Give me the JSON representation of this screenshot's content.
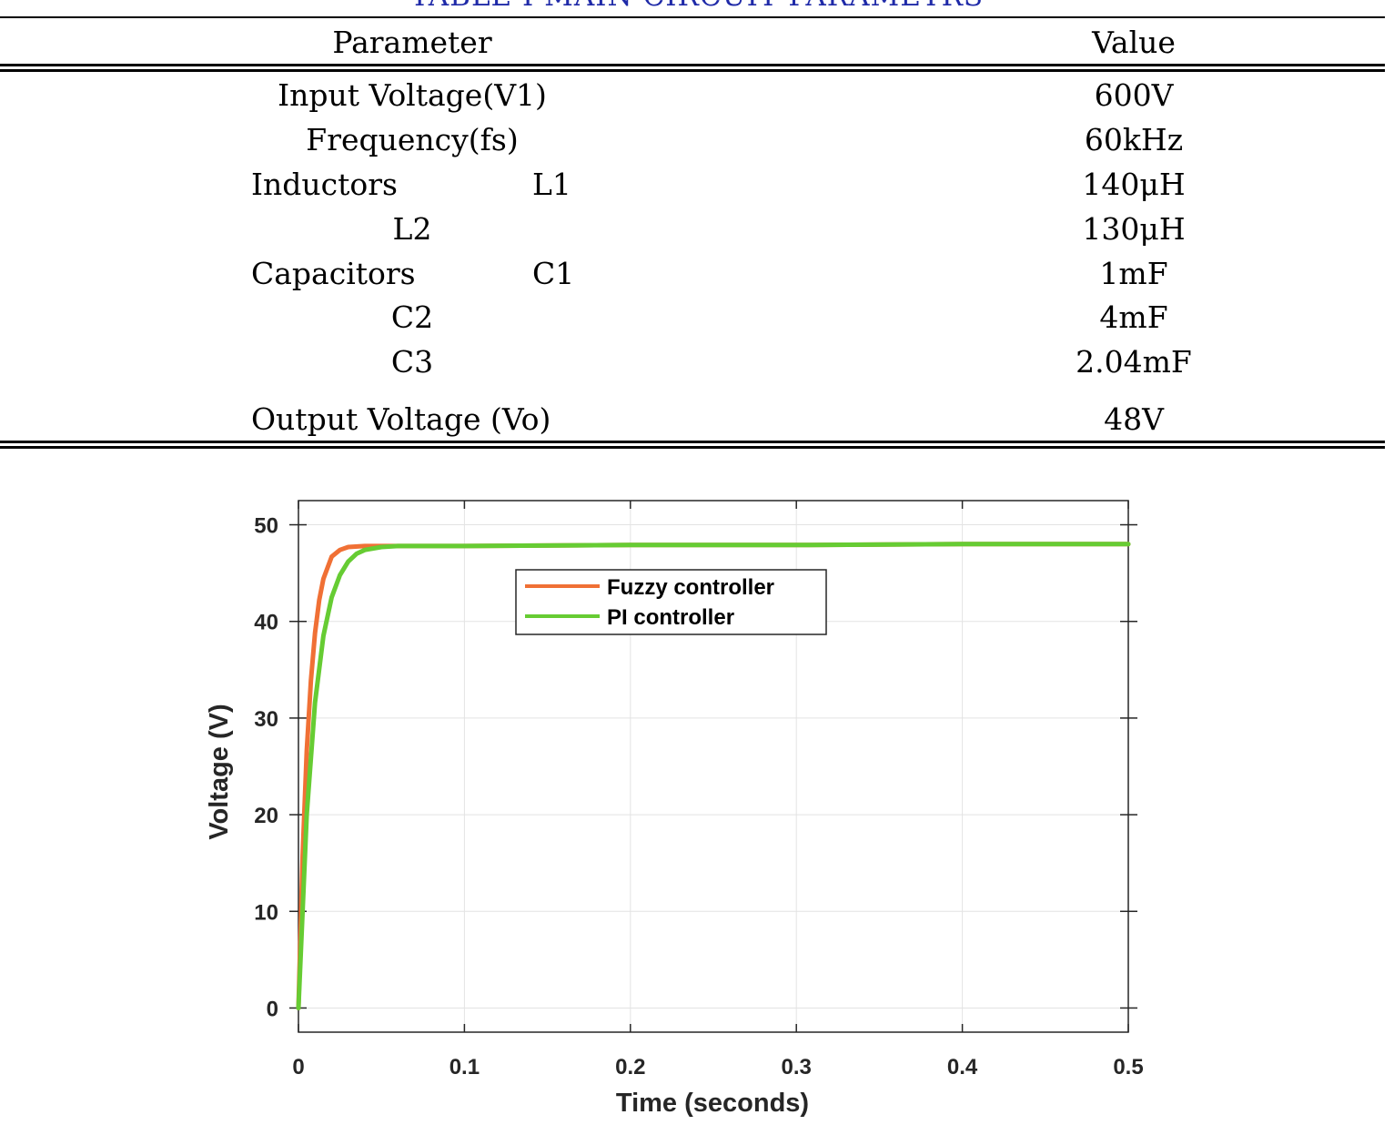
{
  "table": {
    "caption": "TABLE I MAIN CIRCUIT PARAMETRS",
    "header": {
      "param": "Parameter",
      "value": "Value"
    },
    "rows": [
      {
        "param": "Input Voltage(V1)",
        "value": "600V"
      },
      {
        "param": "Frequency(fs)",
        "value": "60kHz"
      },
      {
        "group": "Inductors",
        "sub": "L1",
        "value": "140μH"
      },
      {
        "sub": "L2",
        "value": "130μH"
      },
      {
        "group": "Capacitors",
        "sub": "C1",
        "value": "1mF"
      },
      {
        "sub": "C2",
        "value": "4mF"
      },
      {
        "sub": "C3",
        "value": "2.04mF"
      },
      {
        "param": "Output Voltage (Vo)",
        "value": "48V"
      }
    ]
  },
  "chart_data": {
    "type": "line",
    "title": "",
    "xlabel": "Time (seconds)",
    "ylabel": "Voltage (V)",
    "xlim": [
      0,
      0.5
    ],
    "ylim": [
      -2.5,
      52.5
    ],
    "xticks": [
      "0",
      "0.1",
      "0.2",
      "0.3",
      "0.4",
      "0.5"
    ],
    "yticks": [
      "0",
      "10",
      "20",
      "30",
      "40",
      "50"
    ],
    "grid": true,
    "legend_position": "upper-center",
    "series": [
      {
        "name": "Fuzzy controller",
        "color": "#f07035",
        "x": [
          0,
          0.0025,
          0.005,
          0.0075,
          0.01,
          0.0125,
          0.015,
          0.02,
          0.025,
          0.03,
          0.04,
          0.05,
          0.1,
          0.2,
          0.3,
          0.4,
          0.5
        ],
        "y": [
          0,
          15.8,
          26.6,
          33.9,
          38.8,
          42.2,
          44.4,
          46.7,
          47.4,
          47.7,
          47.8,
          47.8,
          47.8,
          47.9,
          47.9,
          48.0,
          48.0
        ]
      },
      {
        "name": "PI controller",
        "color": "#66cc33",
        "x": [
          0,
          0.005,
          0.01,
          0.015,
          0.02,
          0.025,
          0.03,
          0.035,
          0.04,
          0.05,
          0.06,
          0.07,
          0.1,
          0.2,
          0.3,
          0.4,
          0.5
        ],
        "y": [
          0,
          20.0,
          31.6,
          38.5,
          42.5,
          44.8,
          46.2,
          47.0,
          47.4,
          47.7,
          47.8,
          47.8,
          47.8,
          47.9,
          47.9,
          48.0,
          48.0
        ]
      }
    ]
  }
}
